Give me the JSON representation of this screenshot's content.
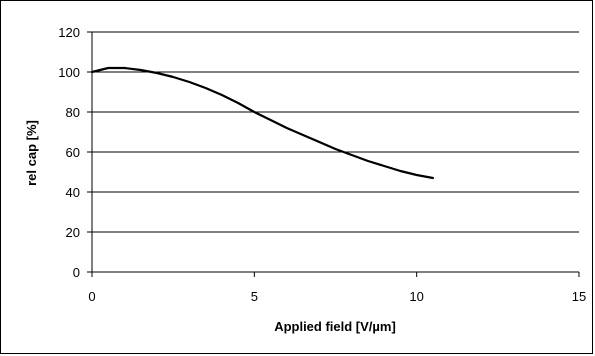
{
  "chart_data": {
    "type": "line",
    "title": "",
    "xlabel": "Applied field [V/µm]",
    "ylabel": "rel cap [%]",
    "xlim": [
      0,
      15
    ],
    "ylim": [
      0,
      120
    ],
    "x_ticks": [
      "0",
      "5",
      "10",
      "15"
    ],
    "y_ticks": [
      "0",
      "20",
      "40",
      "60",
      "80",
      "100",
      "120"
    ],
    "grid": "horizontal",
    "legend": "none",
    "series": [
      {
        "color": "#000000",
        "x": [
          0,
          0.25,
          0.5,
          1.0,
          1.5,
          2.0,
          2.5,
          3.0,
          3.5,
          4.0,
          4.5,
          5.0,
          5.5,
          6.0,
          6.5,
          7.0,
          7.5,
          8.0,
          8.5,
          9.0,
          9.5,
          10.0,
          10.5
        ],
        "y": [
          100,
          101,
          102,
          102,
          101,
          99.5,
          97.5,
          95,
          92,
          88.5,
          84.5,
          80,
          76,
          72,
          68.5,
          65,
          61.5,
          58.5,
          55.5,
          53,
          50.5,
          48.5,
          47
        ]
      }
    ]
  }
}
